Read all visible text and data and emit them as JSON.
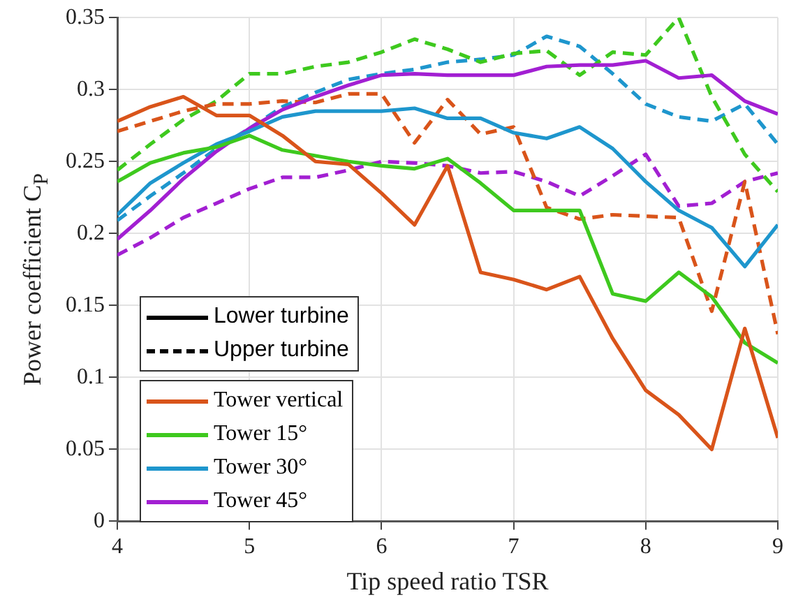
{
  "chart_data": {
    "type": "line",
    "xlabel": "Tip speed ratio TSR",
    "ylabel": "Power coefficient C$_{P}$",
    "x": [
      4,
      4.25,
      4.5,
      4.75,
      5,
      5.25,
      5.5,
      5.75,
      6,
      6.25,
      6.5,
      6.75,
      7,
      7.25,
      7.5,
      7.75,
      8,
      8.25,
      8.5,
      8.75,
      9
    ],
    "xlim": [
      4,
      9
    ],
    "xticks": [
      4,
      5,
      6,
      7,
      8,
      9
    ],
    "ylim": [
      0,
      0.35
    ],
    "yticks": [
      0,
      0.05,
      0.1,
      0.15,
      0.2,
      0.25,
      0.3,
      0.35
    ],
    "grid": true,
    "legend": "bottom left",
    "marker": "none",
    "series": [
      {
        "name": "Lower turbine",
        "color": "#000000",
        "line_style": "solid",
        "values": [
          null,
          null,
          null,
          null,
          null,
          null,
          null,
          null,
          null,
          null,
          null,
          null,
          null,
          null,
          null,
          null,
          null,
          null,
          null,
          null,
          null
        ]
      },
      {
        "name": "Upper turbine",
        "color": "#000000",
        "line_style": "dashed",
        "values": [
          null,
          null,
          null,
          null,
          null,
          null,
          null,
          null,
          null,
          null,
          null,
          null,
          null,
          null,
          null,
          null,
          null,
          null,
          null,
          null,
          null
        ]
      },
      {
        "name": "Tower vertical",
        "color": "#d9541a",
        "line_style": "solid",
        "values": [
          0.278,
          0.288,
          0.295,
          0.282,
          0.282,
          0.268,
          0.25,
          0.248,
          0.228,
          0.206,
          0.247,
          0.173,
          0.168,
          0.161,
          0.17,
          0.127,
          0.091,
          0.074,
          0.05,
          0.134,
          0.058
        ]
      },
      {
        "name": "Tower 15°",
        "color": "#3ec91e",
        "line_style": "solid",
        "values": [
          0.236,
          0.249,
          0.256,
          0.26,
          0.268,
          0.258,
          0.254,
          0.25,
          0.247,
          0.245,
          0.252,
          0.235,
          0.216,
          0.216,
          0.216,
          0.158,
          0.153,
          0.173,
          0.156,
          0.124,
          0.11
        ]
      },
      {
        "name": "Tower 30°",
        "color": "#1e96cd",
        "line_style": "solid",
        "values": [
          0.213,
          0.235,
          0.249,
          0.262,
          0.271,
          0.281,
          0.285,
          0.285,
          0.285,
          0.287,
          0.28,
          0.28,
          0.27,
          0.266,
          0.274,
          0.259,
          0.236,
          0.216,
          0.204,
          0.177,
          0.206
        ]
      },
      {
        "name": "Tower 45°",
        "color": "#a21fd2",
        "line_style": "solid",
        "values": [
          0.196,
          0.216,
          0.238,
          0.257,
          0.273,
          0.286,
          0.295,
          0.303,
          0.31,
          0.311,
          0.31,
          0.31,
          0.31,
          0.316,
          0.317,
          0.317,
          0.32,
          0.308,
          0.31,
          0.292,
          0.283
        ]
      },
      {
        "color": "#d9541a",
        "line_style": "dashed",
        "values": [
          0.271,
          0.278,
          0.285,
          0.29,
          0.29,
          0.292,
          0.291,
          0.297,
          0.297,
          0.263,
          0.293,
          0.269,
          0.274,
          0.218,
          0.21,
          0.213,
          0.212,
          0.211,
          0.146,
          0.236,
          0.13
        ]
      },
      {
        "color": "#3ec91e",
        "line_style": "dashed",
        "values": [
          0.244,
          0.262,
          0.279,
          0.292,
          0.311,
          0.311,
          0.316,
          0.319,
          0.326,
          0.335,
          0.328,
          0.319,
          0.325,
          0.327,
          0.31,
          0.326,
          0.324,
          0.35,
          0.295,
          0.255,
          0.229
        ]
      },
      {
        "color": "#1e96cd",
        "line_style": "dashed",
        "values": [
          0.209,
          0.226,
          0.242,
          0.259,
          0.273,
          0.288,
          0.298,
          0.307,
          0.311,
          0.314,
          0.319,
          0.321,
          0.324,
          0.337,
          0.33,
          0.311,
          0.29,
          0.281,
          0.278,
          0.29,
          0.262
        ]
      },
      {
        "color": "#a21fd2",
        "line_style": "dashed",
        "values": [
          0.185,
          0.197,
          0.211,
          0.221,
          0.231,
          0.239,
          0.239,
          0.244,
          0.25,
          0.249,
          0.247,
          0.242,
          0.243,
          0.236,
          0.226,
          0.24,
          0.255,
          0.219,
          0.221,
          0.236,
          0.242
        ]
      }
    ]
  }
}
